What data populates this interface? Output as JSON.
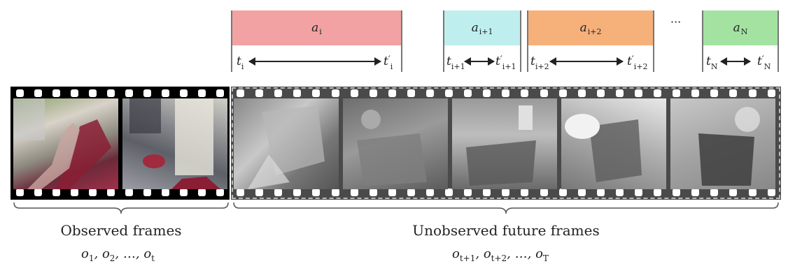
{
  "actions": [
    {
      "id": "a-i",
      "symbol": "a",
      "sub": "i",
      "color": "#f2a2a2",
      "start": "t",
      "start_sub": "i",
      "end": "t",
      "end_sup": "′",
      "end_sub": "i"
    },
    {
      "id": "a-i1",
      "symbol": "a",
      "sub": "i+1",
      "color": "#bfeeee",
      "start": "t",
      "start_sub": "i+1",
      "end": "t",
      "end_sup": "′",
      "end_sub": "i+1"
    },
    {
      "id": "a-i2",
      "symbol": "a",
      "sub": "i+2",
      "color": "#f6b07a",
      "start": "t",
      "start_sub": "i+2",
      "end": "t",
      "end_sup": "′",
      "end_sub": "i+2"
    },
    {
      "id": "a-n",
      "symbol": "a",
      "sub": "N",
      "color": "#a3e2a0",
      "start": "t",
      "start_sub": "N",
      "end": "t",
      "end_sup": "′",
      "end_sub": "N"
    }
  ],
  "ellipsis": "···",
  "observed": {
    "label": "Observed frames",
    "symbols": [
      {
        "s": "o",
        "sub": "1",
        "sep": ", "
      },
      {
        "s": "o",
        "sub": "2",
        "sep": ", …, "
      },
      {
        "s": "o",
        "sub": "t",
        "sep": ""
      }
    ]
  },
  "unobserved": {
    "label": "Unobserved future frames",
    "symbols": [
      {
        "s": "o",
        "sub": "t+1",
        "sep": ", "
      },
      {
        "s": "o",
        "sub": "t+2",
        "sep": ", …, "
      },
      {
        "s": "o",
        "sub": "T",
        "sep": ""
      }
    ]
  }
}
